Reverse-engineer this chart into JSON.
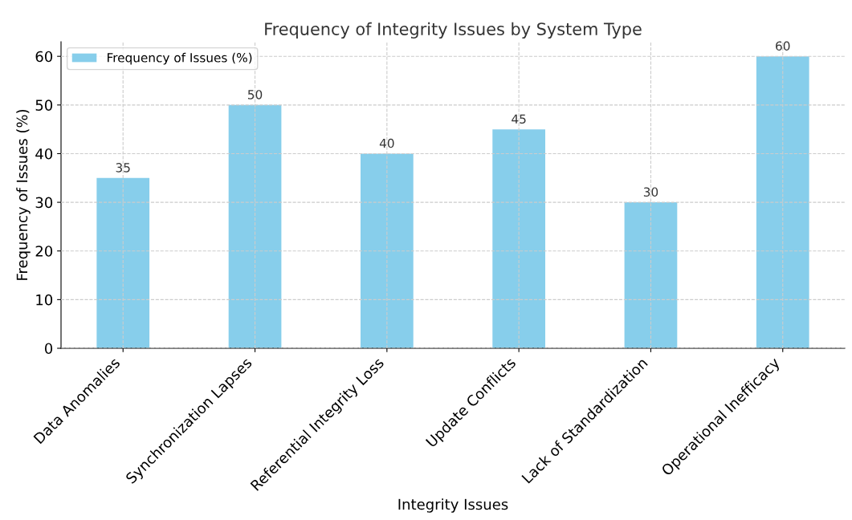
{
  "chart_data": {
    "type": "bar",
    "title": "Frequency of Integrity Issues by System Type",
    "xlabel": "Integrity Issues",
    "ylabel": "Frequency of Issues (%)",
    "categories": [
      "Data Anomalies",
      "Synchronization Lapses",
      "Referential Integrity Loss",
      "Update Conflicts",
      "Lack of Standardization",
      "Operational Inefficacy"
    ],
    "series": [
      {
        "name": "Frequency of Issues (%)",
        "color": "#87ceeb",
        "values": [
          35,
          50,
          40,
          45,
          30,
          60
        ]
      }
    ],
    "ylim": [
      0,
      63
    ],
    "yticks": [
      0,
      10,
      20,
      30,
      40,
      50,
      60
    ],
    "grid": true,
    "legend": "top left",
    "data_labels": true,
    "line_style": "dashed"
  }
}
